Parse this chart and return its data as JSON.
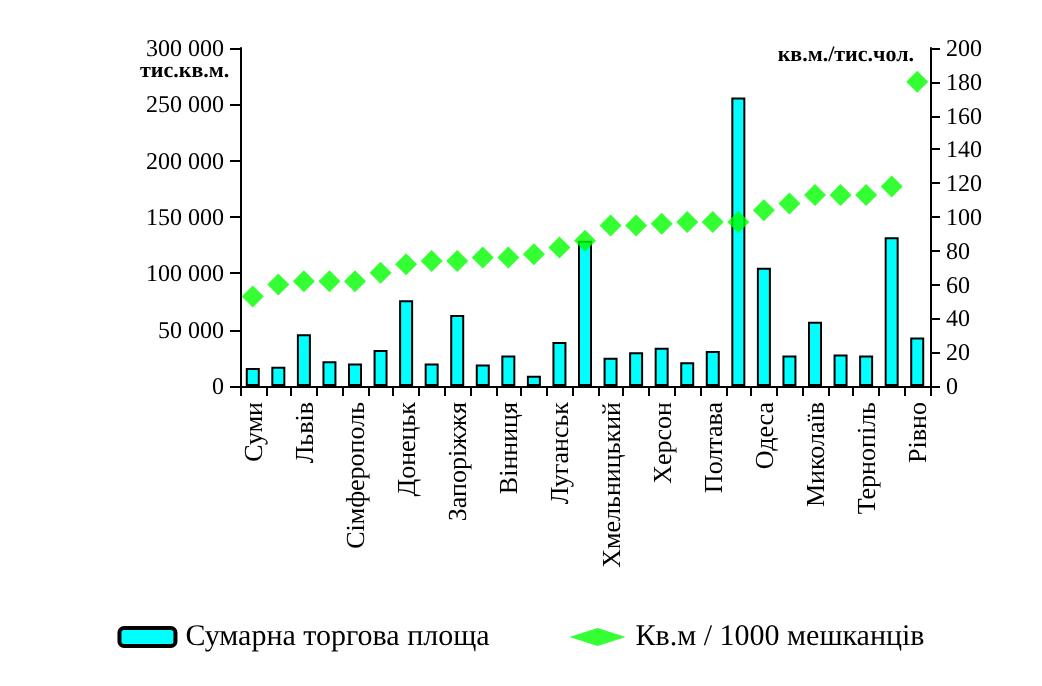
{
  "chart_data": {
    "type": "bar",
    "categories": [
      "Суми",
      null,
      "Львів",
      null,
      "Сімферополь",
      null,
      "Донецьк",
      null,
      "Запоріжжя",
      null,
      "Вінниця",
      null,
      "Луганськ",
      null,
      "Хмельницький",
      null,
      "Херсон",
      null,
      "Полтава",
      null,
      "Одеса",
      null,
      "Миколаїв",
      null,
      "Тернопіль",
      null,
      "Рівно"
    ],
    "series": [
      {
        "name": "Сумарна торгова площа",
        "color": "#00ffff",
        "values": [
          16000,
          17000,
          46000,
          22000,
          20000,
          32000,
          76000,
          20000,
          63000,
          19000,
          27000,
          9000,
          39000,
          129000,
          25000,
          30000,
          34000,
          21000,
          31000,
          256000,
          105000,
          27000,
          57000,
          28000,
          27000,
          132000,
          43000
        ]
      },
      {
        "name": "Кв.м / 1000 мешканців",
        "type": "scatter",
        "axis": "y2",
        "marker": "diamond",
        "color": "#00ff00",
        "values": [
          53,
          60,
          62,
          62,
          62,
          67,
          72,
          74,
          74,
          76,
          76,
          78,
          82,
          86,
          95,
          95,
          96,
          97,
          97,
          97,
          104,
          108,
          113,
          113,
          113,
          118,
          180
        ]
      }
    ],
    "ylabel": "тис.кв.м.",
    "y2label": "кв.м./тис.чол.",
    "ylim": [
      0,
      300000
    ],
    "yticks": [
      0,
      {
        "value": 50000,
        "label": "50 000"
      },
      {
        "value": 100000,
        "label": "100 000"
      },
      {
        "value": 150000,
        "label": "150 000"
      },
      {
        "value": 200000,
        "label": "200 000"
      },
      {
        "value": 250000,
        "label": "250 000"
      },
      {
        "value": 300000,
        "label": "300 000"
      }
    ],
    "y2lim": [
      0,
      200
    ],
    "y2ticks": [
      0,
      20,
      40,
      60,
      80,
      100,
      120,
      140,
      160,
      180,
      200
    ],
    "grid": false,
    "legend": "bottom"
  }
}
